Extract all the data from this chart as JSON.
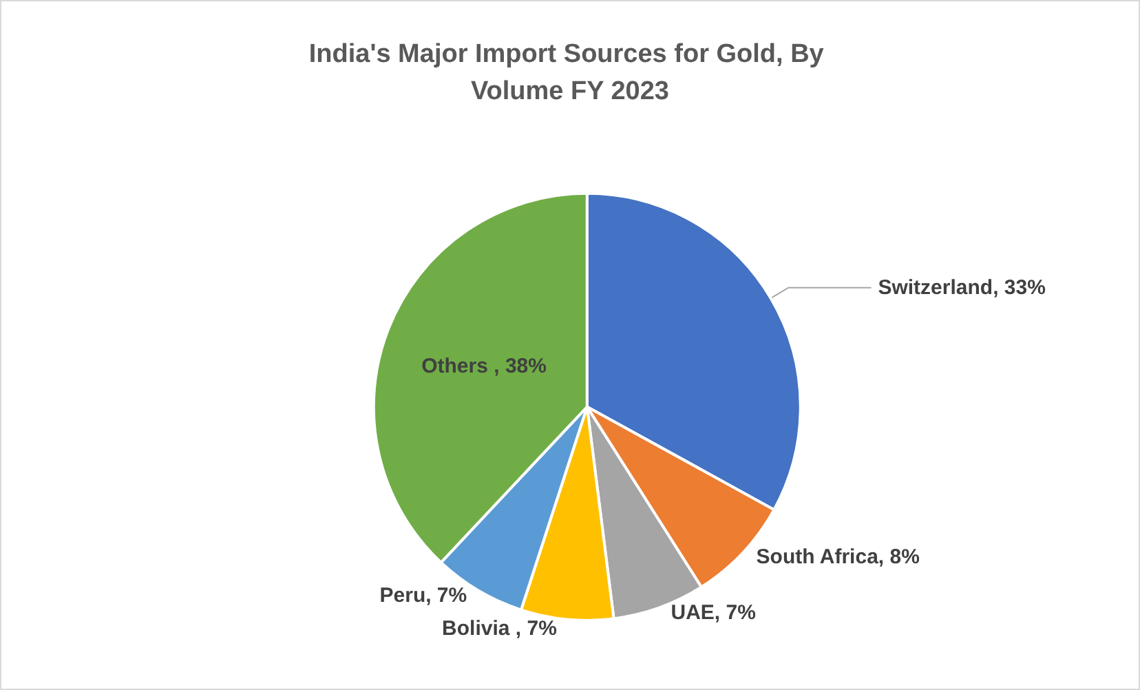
{
  "chart_data": {
    "type": "pie",
    "title": "India's Major Import Sources for Gold, By Volume FY 2023",
    "categories": [
      "Switzerland",
      "South Africa",
      "UAE",
      "Bolivia ",
      "Peru",
      "Others "
    ],
    "values": [
      33,
      8,
      7,
      7,
      7,
      38
    ],
    "value_labels": [
      "33%",
      "8%",
      "7%",
      "7%",
      "7%",
      "38%"
    ],
    "colors": [
      "#4472c4",
      "#ed7d31",
      "#a5a5a5",
      "#ffc000",
      "#5b9bd5",
      "#70ad47"
    ]
  }
}
